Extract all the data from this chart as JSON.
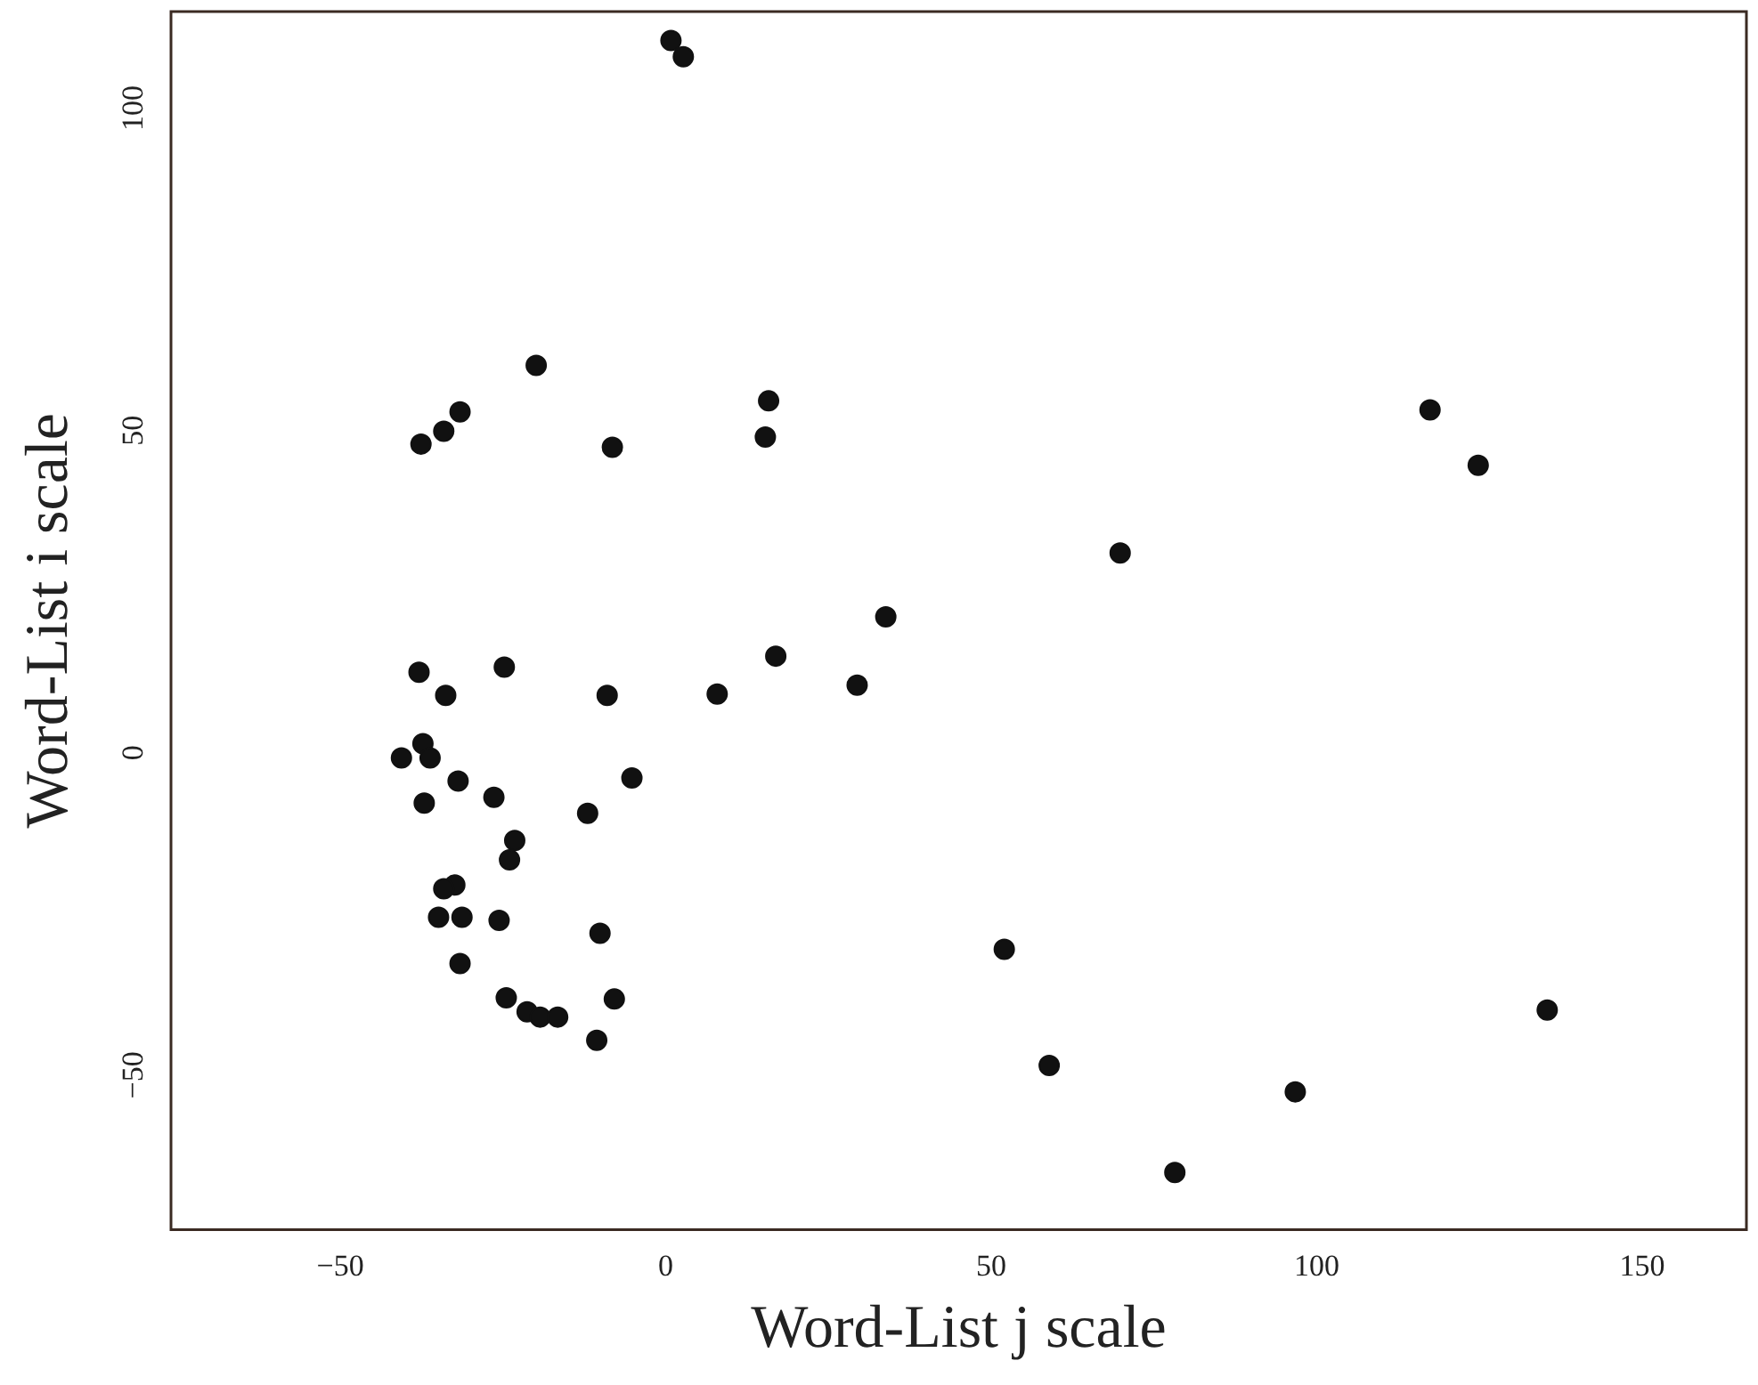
{
  "chart_data": {
    "type": "scatter",
    "xlabel": "Word-List j scale",
    "ylabel": "Word-List i scale",
    "xlim": [
      -76,
      166
    ],
    "ylim": [
      -74,
      115
    ],
    "xticks": [
      -50,
      0,
      50,
      100,
      150
    ],
    "yticks": [
      -50,
      0,
      50,
      100
    ],
    "grid": false,
    "legend": false,
    "marker": "circle",
    "series": [
      {
        "color": "#111111",
        "x": [
          0.8,
          2.7,
          -19.9,
          -31.6,
          -34.1,
          -37.6,
          -8.2,
          15.8,
          15.3,
          117.4,
          124.8,
          69.8,
          33.8,
          16.9,
          29.4,
          7.9,
          -9.0,
          -24.8,
          -37.9,
          -33.8,
          -37.3,
          -36.2,
          -40.6,
          -37.1,
          -31.9,
          -26.4,
          -5.2,
          -12.0,
          -23.2,
          -24.0,
          -32.4,
          -34.1,
          -34.9,
          -31.3,
          -25.6,
          -10.1,
          -31.6,
          52.0,
          -24.5,
          -7.9,
          -21.3,
          -19.3,
          -16.6,
          -10.6,
          135.4,
          58.9,
          96.7,
          78.2
        ],
        "values": [
          110.5,
          108,
          60.1,
          52.9,
          49.9,
          47.9,
          47.4,
          54.6,
          49.0,
          53.2,
          44.6,
          31.0,
          21.1,
          15.0,
          10.5,
          9.1,
          8.9,
          13.3,
          12.5,
          8.9,
          1.4,
          -0.8,
          -0.8,
          -7.8,
          -4.4,
          -6.9,
          -3.9,
          -9.4,
          -13.6,
          -16.6,
          -20.5,
          -21.1,
          -25.5,
          -25.5,
          -26.0,
          -28.0,
          -32.7,
          -30.5,
          -38.0,
          -38.2,
          -40.2,
          -41.0,
          -41.0,
          -44.6,
          -39.9,
          -48.5,
          -52.6,
          -65.1
        ]
      }
    ]
  }
}
